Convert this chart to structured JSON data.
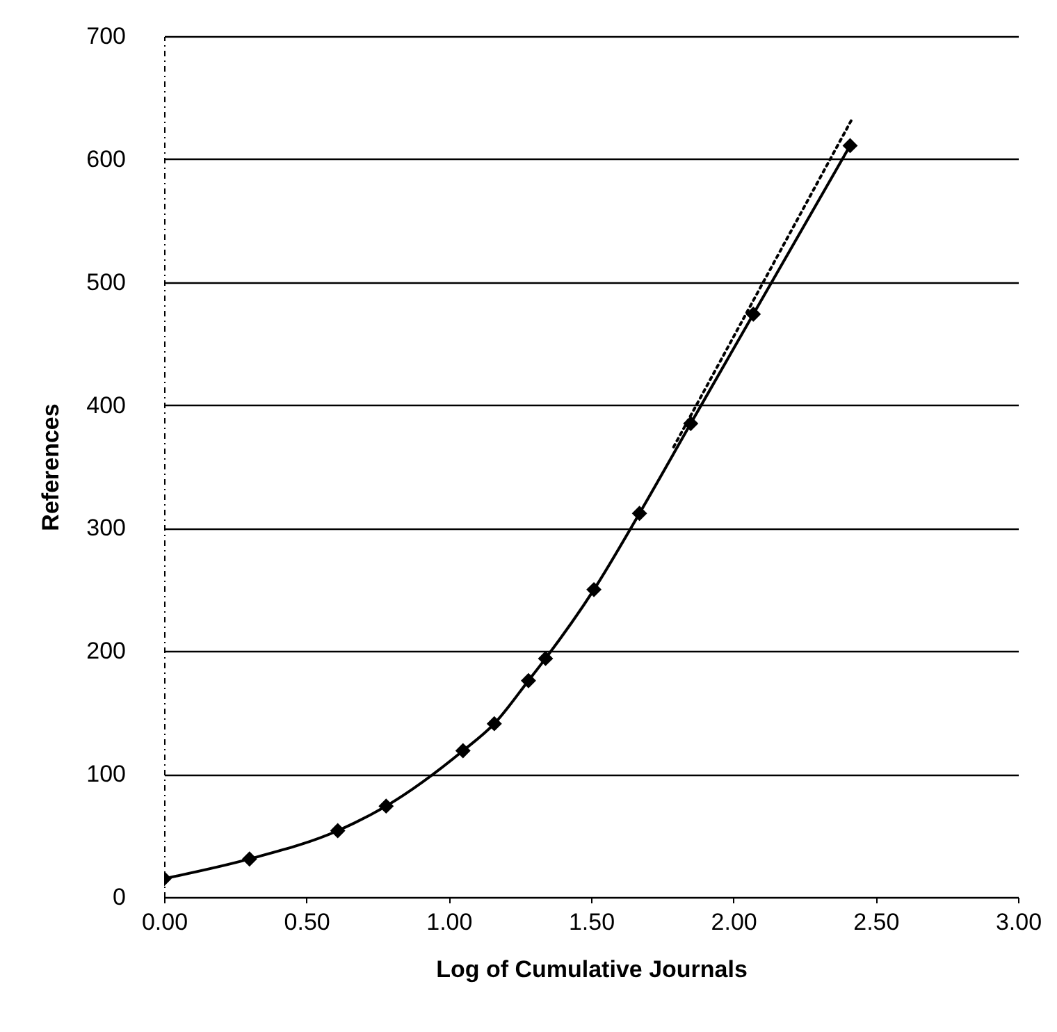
{
  "chart_data": {
    "type": "line",
    "xlabel": "Log of Cumulative Journals",
    "ylabel": "References",
    "xlim": [
      0,
      3
    ],
    "xticks": [
      {
        "value": 0,
        "label": "0.00"
      },
      {
        "value": 0.5,
        "label": "0.50"
      },
      {
        "value": 1,
        "label": "1.00"
      },
      {
        "value": 1.5,
        "label": "1.50"
      },
      {
        "value": 2,
        "label": "2.00"
      },
      {
        "value": 2.5,
        "label": "2.50"
      },
      {
        "value": 3,
        "label": "3.00"
      }
    ],
    "ylim": [
      0,
      700
    ],
    "yticks": [
      0,
      100,
      200,
      300,
      400,
      500,
      600,
      700
    ],
    "grid": "y",
    "series": [
      {
        "color": "#000000",
        "marker": "diamond",
        "line_style": "solid",
        "x": [
          0,
          0.3,
          0.61,
          0.78,
          1.05,
          1.16,
          1.28,
          1.34,
          1.51,
          1.67,
          1.85,
          2.07,
          2.41
        ],
        "values": [
          15,
          31,
          54,
          74,
          119,
          141,
          176,
          194,
          250,
          312,
          385,
          474,
          611
        ]
      },
      {
        "type": "line",
        "color": "#000000",
        "marker": "none",
        "line_style": "dotted",
        "x": [
          1.79,
          2.42
        ],
        "values": [
          366,
          634
        ]
      }
    ]
  }
}
